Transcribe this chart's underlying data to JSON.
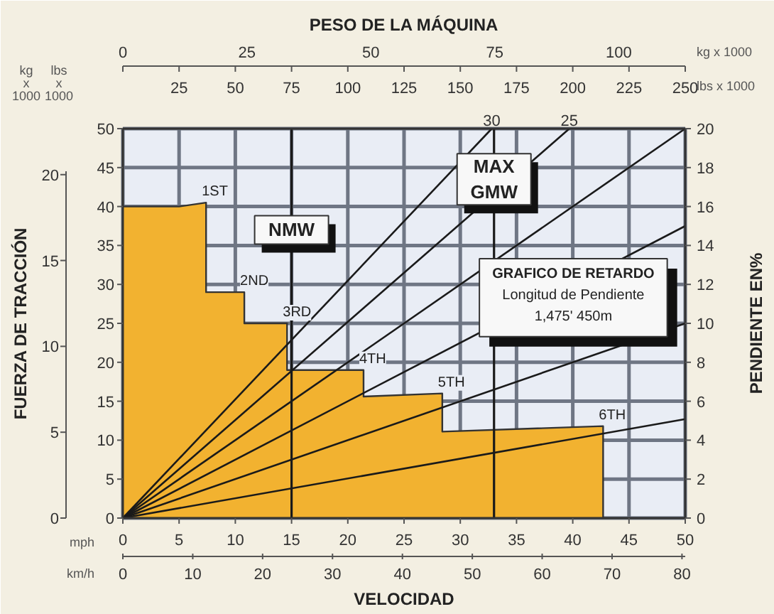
{
  "chart_data": {
    "type": "area",
    "xlabel": "VELOCIDAD",
    "ylabel": "FUERZA DE TRACCIÓN",
    "y2label": "PENDIENTE EN%",
    "x2label": "PESO DE LA MÁQUINA",
    "xlim": [
      0,
      50
    ],
    "xticks": [
      0,
      5,
      10,
      15,
      20,
      25,
      30,
      35,
      40,
      45,
      50
    ],
    "ylim": [
      0,
      50
    ],
    "yticks": [
      0,
      5,
      10,
      15,
      20,
      25,
      30,
      35,
      40,
      45,
      50
    ],
    "y2lim": [
      0,
      20
    ],
    "y2ticks": [
      0,
      2,
      4,
      6,
      8,
      10,
      12,
      14,
      16,
      18,
      20
    ],
    "y3lim": [
      0,
      22.68
    ],
    "y3ticks": [
      0,
      5,
      10,
      15,
      20
    ],
    "x2lim": [
      0,
      250
    ],
    "x2ticks": [
      {
        "value": 0,
        "label": null
      },
      25,
      50,
      75,
      100,
      125,
      150,
      175,
      200,
      225,
      250
    ],
    "grid": true,
    "series": [
      {
        "color": "#f2b230",
        "x": [
          0,
          5,
          7.4,
          7.4,
          10.8,
          10.8,
          14.6,
          14.6,
          21.4,
          21.4,
          28.4,
          28.4,
          42.7,
          42.7
        ],
        "values": [
          40,
          40,
          40.5,
          29,
          29,
          25,
          25,
          19,
          19,
          15.6,
          16,
          11.1,
          11.8,
          0
        ]
      },
      {
        "type": "line",
        "color": "#1a1a1a",
        "x": [
          0,
          50
        ],
        "values": [
          0,
          12.7
        ]
      },
      {
        "type": "line",
        "color": "#1a1a1a",
        "x": [
          0,
          50
        ],
        "values": [
          0,
          25
        ]
      },
      {
        "type": "line",
        "color": "#1a1a1a",
        "x": [
          0,
          50
        ],
        "values": [
          0,
          37.5
        ]
      },
      {
        "type": "line",
        "color": "#1a1a1a",
        "x": [
          0,
          50
        ],
        "values": [
          0,
          50
        ]
      },
      {
        "type": "line",
        "color": "#1a1a1a",
        "x": [
          0,
          39.7
        ],
        "values": [
          0,
          50
        ]
      },
      {
        "type": "line",
        "color": "#1a1a1a",
        "x": [
          0,
          32.8
        ],
        "values": [
          0,
          50
        ]
      }
    ],
    "ref_lines": [
      {
        "axis": "x",
        "value": 15,
        "label": "NMW",
        "color": "#1a1a1a"
      },
      {
        "axis": "x",
        "value": 33,
        "label": "MAX GMW",
        "color": "#1a1a1a"
      }
    ],
    "annotations": [
      "kg x 1000",
      "lbs x 1000",
      "kg x 1000",
      "lbs x 1000",
      "mph",
      "km/h",
      "GRAFICO DE RETARDO",
      "Longitud de Pendiente",
      "1,475' 450m",
      "0",
      "25",
      "50",
      "75",
      "100",
      "0",
      "10",
      "20",
      "30",
      "40",
      "50",
      "60",
      "70",
      "80",
      {
        "text": "1ST",
        "x": 7.4,
        "y": 40.5
      },
      {
        "text": "2ND",
        "x": 10.8,
        "y": 29
      },
      {
        "text": "3RD",
        "x": 14.6,
        "y": 25
      },
      {
        "text": "4TH",
        "x": 21.4,
        "y": 19
      },
      {
        "text": "5TH",
        "x": 28.4,
        "y": 16
      },
      {
        "text": "6TH",
        "x": 42.7,
        "y": 11.8
      },
      {
        "text": "30",
        "x": 32.8,
        "y": 50
      },
      {
        "text": "25",
        "x": 39.7,
        "y": 50
      }
    ]
  }
}
